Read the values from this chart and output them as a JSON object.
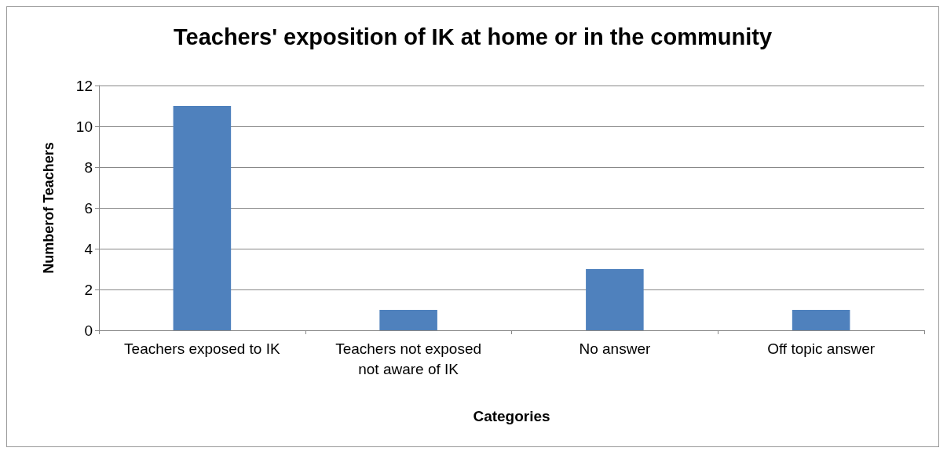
{
  "chart_data": {
    "type": "bar",
    "title": "Teachers' exposition of IK at home or in the community",
    "xlabel": "Categories",
    "ylabel": "Numberof Teachers",
    "categories": [
      "Teachers exposed to IK",
      "Teachers not exposed\nnot aware of IK",
      "No answer",
      "Off topic answer"
    ],
    "values": [
      11,
      1,
      3,
      1
    ],
    "color": "#4f81bd",
    "ylim": [
      0,
      12
    ],
    "yticks": [
      0,
      2,
      4,
      6,
      8,
      10,
      12
    ],
    "grid": "y"
  }
}
